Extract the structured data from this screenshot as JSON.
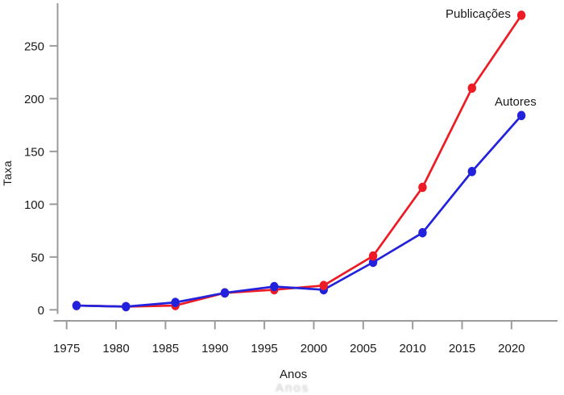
{
  "chart_data": {
    "type": "line",
    "x": [
      1976,
      1981,
      1986,
      1991,
      1996,
      2001,
      2006,
      2011,
      2016,
      2021
    ],
    "series": [
      {
        "name": "Publicações",
        "color": "#ed1c24",
        "values": [
          4,
          3,
          4,
          16,
          19,
          23,
          51,
          116,
          210,
          279
        ]
      },
      {
        "name": "Autores",
        "color": "#2222dd",
        "values": [
          4,
          3,
          7,
          16,
          22,
          19,
          45,
          73,
          131,
          184
        ]
      }
    ],
    "title": "",
    "xlabel": "Anos",
    "ylabel": "Taxa",
    "xticks": [
      1975,
      1980,
      1985,
      1990,
      1995,
      2000,
      2005,
      2010,
      2015,
      2020
    ],
    "yticks": [
      0,
      50,
      100,
      150,
      200,
      250
    ],
    "xlim": [
      1974,
      2024.5
    ],
    "ylim": [
      0,
      290
    ],
    "grid": false,
    "legend_position": "inline-annotations-near-last-points",
    "axis_color": "#9b9b9b",
    "text_color": "#1a1a1a"
  }
}
